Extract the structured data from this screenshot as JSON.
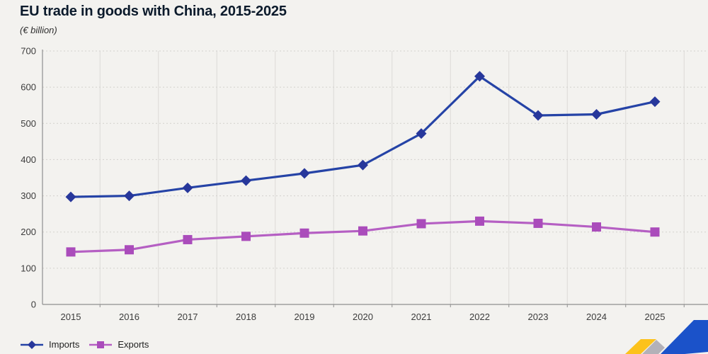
{
  "header": {
    "title": "EU trade in goods with China, 2015-2025",
    "subtitle": "(€ billion)"
  },
  "chart_data": {
    "type": "line",
    "categories": [
      "2015",
      "2016",
      "2017",
      "2018",
      "2019",
      "2020",
      "2021",
      "2022",
      "2023",
      "2024",
      "2025"
    ],
    "series": [
      {
        "name": "Imports",
        "marker": "diamond",
        "line_color": "#2543a6",
        "marker_color": "#27379b",
        "values": [
          297,
          300,
          322,
          342,
          362,
          385,
          472,
          630,
          522,
          525,
          560
        ]
      },
      {
        "name": "Exports",
        "marker": "square",
        "line_color": "#b55fc3",
        "marker_color": "#aa4cbb",
        "values": [
          145,
          151,
          179,
          188,
          197,
          203,
          223,
          230,
          224,
          214,
          200
        ]
      }
    ],
    "title": "EU trade in goods with China, 2015-2025",
    "ylabel": "(€ billion)",
    "xlabel": "",
    "ylim": [
      0,
      700
    ],
    "ytick_step": 100,
    "yticks": [
      "0",
      "100",
      "200",
      "300",
      "400",
      "500",
      "600",
      "700"
    ],
    "grid": "horizontal dashed, vertical solid at category boundaries",
    "legend_position": "bottom-left"
  },
  "legend": {
    "imports_label": "Imports",
    "exports_label": "Exports"
  },
  "colors": {
    "background": "#f3f2ef",
    "axis": "#8f8f8f",
    "grid_horizontal": "#d3d1ce",
    "grid_vertical": "#dcdad7",
    "tick_text": "#3c3c3c",
    "title_text": "#0b1a2b",
    "imports_line": "#2543a6",
    "imports_marker": "#27379b",
    "exports_line": "#b55fc3",
    "exports_marker": "#aa4cbb",
    "logo_blue": "#1b52c9",
    "logo_yellow": "#fcc21b",
    "logo_gray": "#b3b1b8"
  }
}
